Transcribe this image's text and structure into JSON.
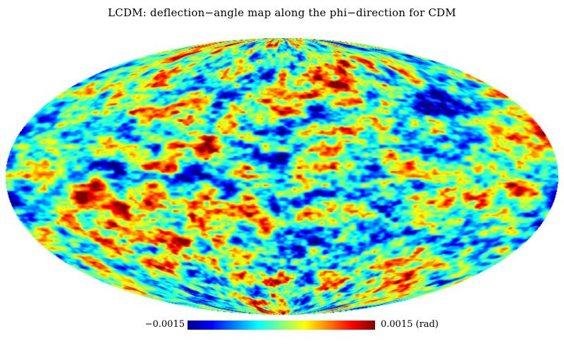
{
  "title": "LCDM: deflection−angle map along the phi−direction for CDM",
  "map": {
    "projection": "mollweide",
    "quantity": "deflection angle (phi-direction)",
    "field_appearance": "random fluctuation field"
  },
  "colorbar": {
    "min_label": "−0.0015",
    "max_label": "0.0015 (rad)",
    "min_value": -0.0015,
    "max_value": 0.0015,
    "colormap": "jet",
    "colors": [
      "#00008f",
      "#0000ff",
      "#00ffff",
      "#ffff00",
      "#ff0000",
      "#800000"
    ]
  }
}
